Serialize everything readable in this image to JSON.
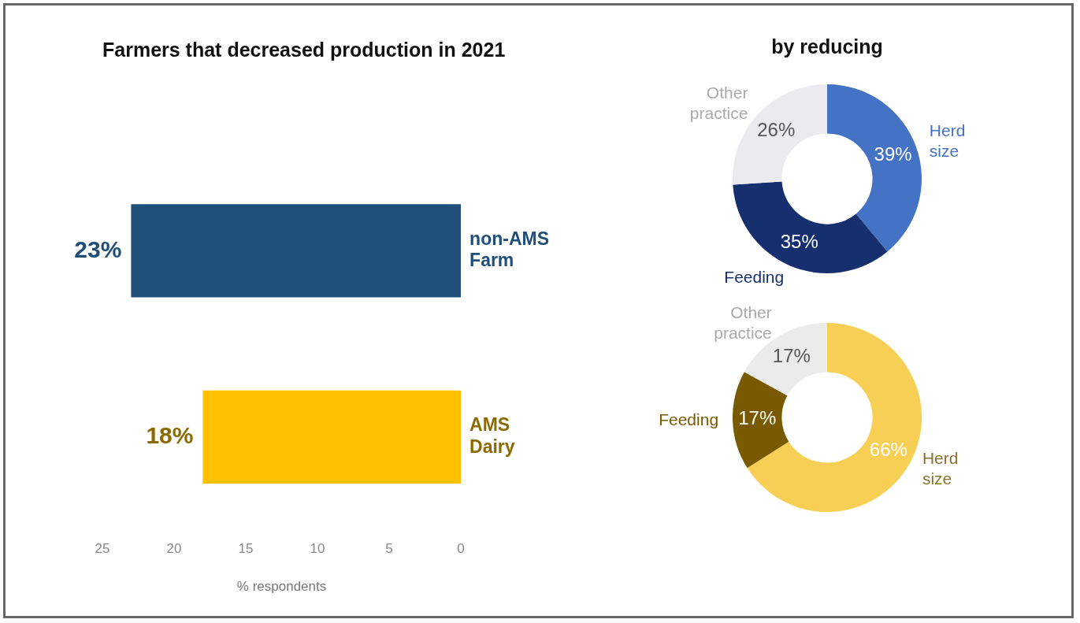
{
  "chart_data": [
    {
      "type": "bar",
      "orientation": "horizontal",
      "title": "Farmers that decreased production in 2021",
      "categories": [
        "non-AMS Farm",
        "AMS Dairy"
      ],
      "values": [
        23,
        18
      ],
      "colors": [
        "#1f4e79",
        "#ffc000"
      ],
      "value_labels": [
        "23%",
        "18%"
      ],
      "xlim": [
        25,
        0
      ],
      "xticks": [
        25,
        20,
        15,
        10,
        5,
        0
      ],
      "xlabel": "% respondents",
      "grid": false,
      "legend": false
    },
    {
      "type": "donut",
      "title": "by reducing",
      "categories": [
        "Herd size",
        "Feeding",
        "Other practice"
      ],
      "values": [
        39,
        35,
        26
      ],
      "colors": [
        "#4472c4",
        "#162f6e",
        "#ebebef"
      ],
      "value_labels": [
        "39%",
        "35%",
        "26%"
      ],
      "legend": false
    },
    {
      "type": "donut",
      "categories": [
        "Herd size",
        "Feeding",
        "Other practice"
      ],
      "values": [
        66,
        17,
        17
      ],
      "colors": [
        "#f7cf55",
        "#7a5a00",
        "#ebebeb"
      ],
      "value_labels": [
        "66%",
        "17%",
        "17%"
      ],
      "legend": false
    }
  ]
}
